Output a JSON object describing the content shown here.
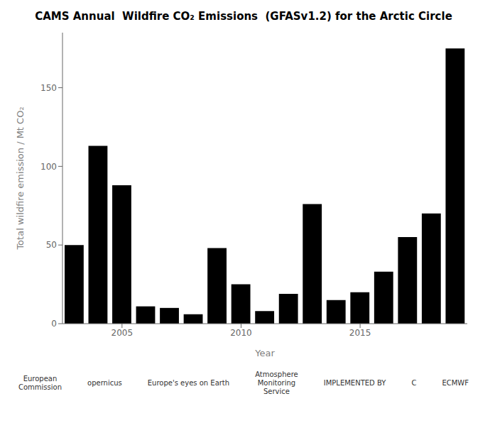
{
  "chart_data": {
    "type": "bar",
    "title": "CAMS Annual  Wildfire CO₂ Emissions  (GFASv1.2) for the Arctic Circle",
    "xlabel": "Year",
    "ylabel": "Total wildfire emission / Mt CO₂",
    "x": [
      2003,
      2004,
      2005,
      2006,
      2007,
      2008,
      2009,
      2010,
      2011,
      2012,
      2013,
      2014,
      2015,
      2016,
      2017,
      2018,
      2019
    ],
    "values": [
      50,
      113,
      88,
      11,
      10,
      6,
      48,
      25,
      8,
      19,
      76,
      15,
      20,
      33,
      55,
      70,
      175
    ],
    "color": "#000000",
    "xlim": [
      2002.5,
      2019.5
    ],
    "xticks": [
      2005,
      2010,
      2015
    ],
    "ylim": [
      0,
      185
    ],
    "yticks": [
      0,
      50,
      100,
      150
    ],
    "annotations": [
      "European\nCommission",
      "opernicus",
      "Europe's eyes on Earth",
      "Atmosphere\nMonitoring\nService",
      "IMPLEMENTED BY",
      "C",
      "ECMWF"
    ]
  }
}
